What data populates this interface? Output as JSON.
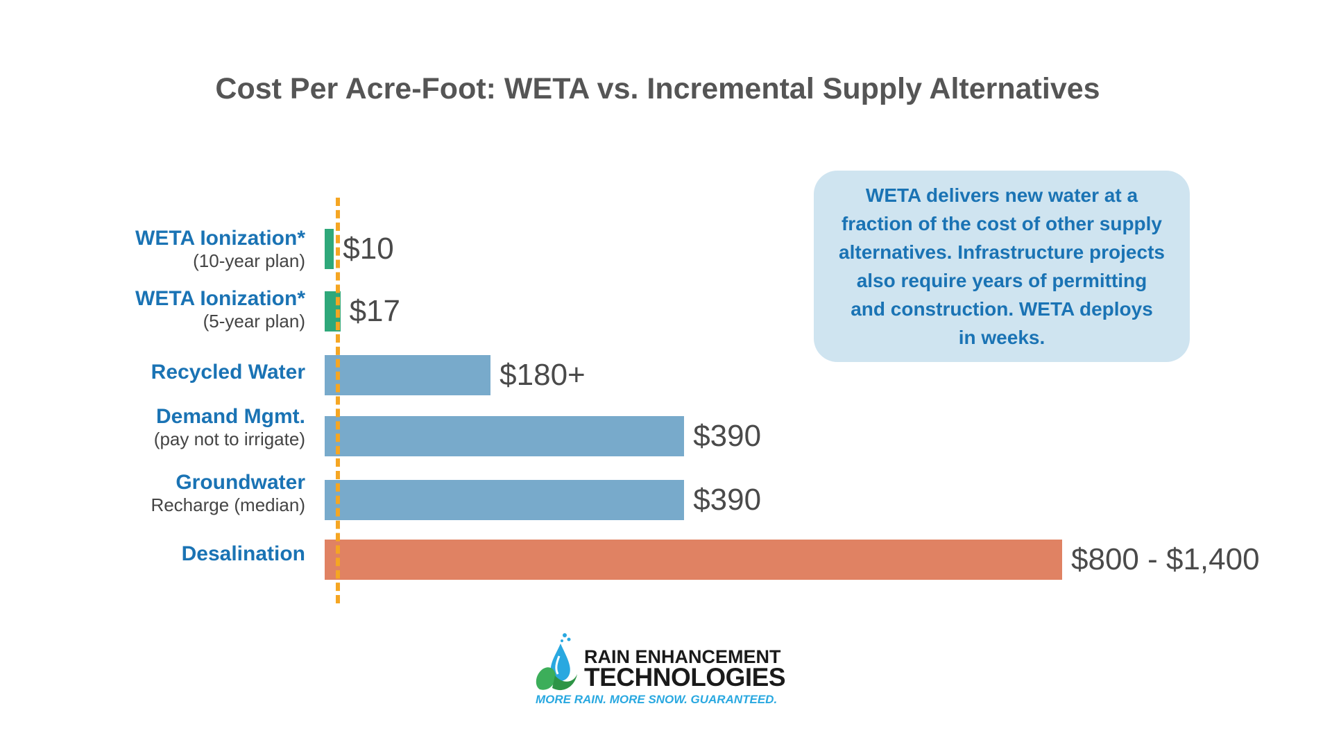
{
  "chart_data": {
    "type": "bar",
    "orientation": "horizontal",
    "title": "Cost Per Acre-Foot: WETA vs. Incremental Supply Alternatives",
    "xlabel": "",
    "ylabel": "",
    "xlim": [
      0,
      1400
    ],
    "grid": false,
    "categories": [
      {
        "label": "WETA Ionization*",
        "sublabel": "(10-year plan)"
      },
      {
        "label": "WETA Ionization*",
        "sublabel": "(5-year plan)"
      },
      {
        "label": "Recycled Water",
        "sublabel": ""
      },
      {
        "label": "Demand Mgmt.",
        "sublabel": "(pay not to irrigate)"
      },
      {
        "label": "Groundwater",
        "sublabel": "Recharge (median)"
      },
      {
        "label": "Desalination",
        "sublabel": ""
      }
    ],
    "values": [
      10,
      17,
      180,
      390,
      390,
      800
    ],
    "value_labels": [
      "$10",
      "$17",
      "$180+",
      "$390",
      "$390",
      "$800 - $1,400"
    ],
    "colors": [
      "#2fa87a",
      "#2fa87a",
      "#78aacb",
      "#78aacb",
      "#78aacb",
      "#e08263"
    ],
    "reference_line": {
      "value": 10,
      "color": "#f5a623",
      "style": "dashed"
    }
  },
  "callout": {
    "lines": [
      "WETA delivers new water at a",
      "fraction of the cost of other supply",
      "alternatives. Infrastructure projects",
      "also require years of permitting",
      "and construction. WETA deploys",
      "in weeks."
    ]
  },
  "logo": {
    "line1": "RAIN ENHANCEMENT",
    "line2": "TECHNOLOGIES",
    "tagline": "MORE RAIN. MORE SNOW. GUARANTEED."
  }
}
